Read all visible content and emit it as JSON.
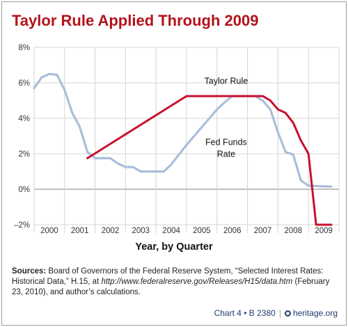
{
  "title": "Taylor Rule Applied Through 2009",
  "xlabel": "Year, by Quarter",
  "sources": {
    "label": "Sources:",
    "text_1": " Board of Governors of the Federal Reserve System, “Selected Interest Rates: Historical Data,” H.15, at ",
    "url": "http://www.federalreserve.gov/Releases/H15/data.htm",
    "text_2": " (February 23, 2010), and author’s calculations."
  },
  "footer": {
    "chart_ref": "Chart 4 • B 2380",
    "site": "heritage.org"
  },
  "chart_data": {
    "type": "line",
    "title": "Taylor Rule Applied Through 2009",
    "xlabel": "Year, by Quarter",
    "ylabel": "",
    "xlim": [
      2000,
      2010
    ],
    "ylim": [
      -2,
      8
    ],
    "yticks": [
      -2,
      0,
      2,
      4,
      6,
      8
    ],
    "ytick_labels": [
      "–2%",
      "0%",
      "2%",
      "4%",
      "6%",
      "8%"
    ],
    "xtick_labels": [
      "2000",
      "2001",
      "2002",
      "2003",
      "2004",
      "2005",
      "2006",
      "2007",
      "2008",
      "2009"
    ],
    "grid": true,
    "series": [
      {
        "name": "Fed Funds Rate",
        "label_lines": [
          "Fed Funds",
          "Rate"
        ],
        "color": "#a9bedb",
        "x": [
          2000.0,
          2000.25,
          2000.5,
          2000.75,
          2001.0,
          2001.25,
          2001.5,
          2001.75,
          2002.0,
          2002.25,
          2002.5,
          2002.75,
          2003.0,
          2003.25,
          2003.5,
          2003.75,
          2004.0,
          2004.25,
          2004.5,
          2004.75,
          2005.0,
          2005.25,
          2005.5,
          2005.75,
          2006.0,
          2006.25,
          2006.5,
          2006.75,
          2007.0,
          2007.25,
          2007.5,
          2007.75,
          2008.0,
          2008.25,
          2008.5,
          2008.75,
          2009.0,
          2009.25,
          2009.5,
          2009.75
        ],
        "y": [
          5.7,
          6.3,
          6.5,
          6.45,
          5.6,
          4.3,
          3.5,
          2.1,
          1.75,
          1.75,
          1.75,
          1.45,
          1.25,
          1.25,
          1.0,
          1.0,
          1.0,
          1.0,
          1.4,
          1.95,
          2.5,
          3.0,
          3.5,
          4.0,
          4.5,
          4.9,
          5.25,
          5.25,
          5.25,
          5.25,
          5.0,
          4.5,
          3.2,
          2.1,
          1.95,
          0.5,
          0.2,
          0.18,
          0.16,
          0.15
        ]
      },
      {
        "name": "Taylor Rule",
        "label_lines": [
          "Taylor Rule"
        ],
        "color": "#c8102e",
        "x": [
          2001.75,
          2005.0,
          2007.25,
          2007.5,
          2007.75,
          2008.0,
          2008.25,
          2008.5,
          2008.75,
          2009.0,
          2009.25,
          2009.5,
          2009.75
        ],
        "y": [
          1.75,
          5.25,
          5.25,
          5.25,
          5.0,
          4.5,
          4.3,
          3.75,
          2.75,
          2.0,
          -2.0,
          -2.0,
          -2.0
        ]
      }
    ]
  }
}
